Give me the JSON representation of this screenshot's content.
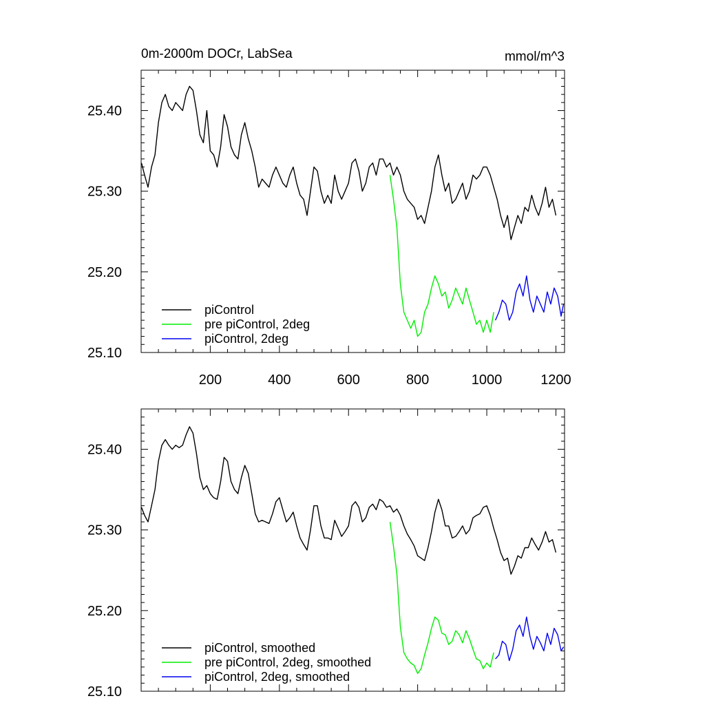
{
  "colors": {
    "piControl": "#000000",
    "pre_piControl_2deg": "#00ee00",
    "piControl_2deg": "#0000ee"
  },
  "chart_data": [
    {
      "type": "line",
      "title": "0m-2000m DOCr, LabSea",
      "units": "mmol/m^3",
      "xlim": [
        0,
        1225
      ],
      "ylim": [
        25.1,
        25.45
      ],
      "yticks": [
        "25.10",
        "25.20",
        "25.30",
        "25.40"
      ],
      "xticks": [
        "200",
        "400",
        "600",
        "800",
        "1000",
        "1200"
      ],
      "grid": false,
      "legend_position": "bottom-left",
      "series": [
        {
          "name": "piControl",
          "color": "#000000",
          "x": [
            1,
            10,
            20,
            30,
            40,
            50,
            60,
            70,
            80,
            90,
            100,
            110,
            120,
            130,
            140,
            150,
            160,
            170,
            180,
            190,
            200,
            210,
            220,
            230,
            240,
            250,
            260,
            270,
            280,
            290,
            300,
            310,
            320,
            330,
            340,
            350,
            360,
            370,
            380,
            390,
            400,
            410,
            420,
            430,
            440,
            450,
            460,
            470,
            480,
            490,
            500,
            510,
            520,
            530,
            540,
            550,
            560,
            570,
            580,
            590,
            600,
            610,
            620,
            630,
            640,
            650,
            660,
            670,
            680,
            690,
            700,
            710,
            720,
            730,
            740,
            750,
            760,
            770,
            780,
            790,
            800,
            810,
            820,
            830,
            840,
            850,
            860,
            870,
            880,
            890,
            900,
            910,
            920,
            930,
            940,
            950,
            960,
            970,
            980,
            990,
            1000,
            1010,
            1020,
            1030,
            1040,
            1050,
            1060,
            1070,
            1080,
            1090,
            1100,
            1110,
            1120,
            1130,
            1140,
            1150,
            1160,
            1170,
            1180,
            1190,
            1200
          ],
          "y": [
            25.335,
            25.32,
            25.305,
            25.33,
            25.345,
            25.385,
            25.41,
            25.42,
            25.405,
            25.4,
            25.41,
            25.405,
            25.4,
            25.42,
            25.43,
            25.425,
            25.4,
            25.37,
            25.36,
            25.4,
            25.35,
            25.345,
            25.33,
            25.355,
            25.395,
            25.38,
            25.355,
            25.345,
            25.34,
            25.37,
            25.385,
            25.365,
            25.35,
            25.33,
            25.305,
            25.315,
            25.31,
            25.305,
            25.32,
            25.33,
            25.32,
            25.31,
            25.305,
            25.32,
            25.33,
            25.31,
            25.295,
            25.29,
            25.27,
            25.3,
            25.33,
            25.325,
            25.3,
            25.285,
            25.295,
            25.285,
            25.32,
            25.3,
            25.29,
            25.3,
            25.31,
            25.335,
            25.34,
            25.325,
            25.3,
            25.31,
            25.33,
            25.335,
            25.32,
            25.34,
            25.34,
            25.33,
            25.335,
            25.32,
            25.33,
            25.32,
            25.3,
            25.29,
            25.285,
            25.28,
            25.265,
            25.27,
            25.26,
            25.28,
            25.3,
            25.33,
            25.345,
            25.32,
            25.3,
            25.31,
            25.285,
            25.29,
            25.3,
            25.31,
            25.29,
            25.3,
            25.32,
            25.315,
            25.32,
            25.33,
            25.33,
            25.32,
            25.305,
            25.29,
            25.27,
            25.255,
            25.27,
            25.24,
            25.255,
            25.27,
            25.26,
            25.28,
            25.275,
            25.295,
            25.28,
            25.27,
            25.285,
            25.305,
            25.28,
            25.29,
            25.27
          ]
        },
        {
          "name": "pre piControl, 2deg",
          "color": "#00ee00",
          "x": [
            720,
            730,
            740,
            750,
            760,
            770,
            780,
            790,
            800,
            810,
            820,
            830,
            840,
            850,
            860,
            870,
            880,
            890,
            900,
            910,
            920,
            930,
            940,
            950,
            960,
            970,
            980,
            990,
            1000,
            1010,
            1020
          ],
          "y": [
            25.32,
            25.29,
            25.255,
            25.185,
            25.15,
            25.14,
            25.13,
            25.14,
            25.12,
            25.125,
            25.15,
            25.16,
            25.18,
            25.195,
            25.185,
            25.17,
            25.175,
            25.155,
            25.165,
            25.18,
            25.17,
            25.16,
            25.18,
            25.165,
            25.15,
            25.135,
            25.14,
            25.125,
            25.14,
            25.125,
            25.15
          ]
        },
        {
          "name": "piControl, 2deg",
          "color": "#0000ee",
          "x": [
            1025,
            1035,
            1045,
            1055,
            1065,
            1075,
            1085,
            1095,
            1105,
            1115,
            1125,
            1135,
            1145,
            1155,
            1165,
            1175,
            1185,
            1195,
            1205,
            1215,
            1222
          ],
          "y": [
            25.14,
            25.15,
            25.165,
            25.16,
            25.14,
            25.15,
            25.175,
            25.185,
            25.17,
            25.195,
            25.165,
            25.15,
            25.17,
            25.16,
            25.15,
            25.175,
            25.16,
            25.18,
            25.17,
            25.145,
            25.16
          ]
        }
      ]
    },
    {
      "type": "line",
      "xlim": [
        0,
        1225
      ],
      "ylim": [
        25.1,
        25.45
      ],
      "yticks": [
        "25.10",
        "25.20",
        "25.30",
        "25.40"
      ],
      "grid": false,
      "legend_position": "bottom-left",
      "series": [
        {
          "name": "piControl, smoothed",
          "color": "#000000",
          "x": [
            1,
            10,
            20,
            30,
            40,
            50,
            60,
            70,
            80,
            90,
            100,
            110,
            120,
            130,
            140,
            150,
            160,
            170,
            180,
            190,
            200,
            210,
            220,
            230,
            240,
            250,
            260,
            270,
            280,
            290,
            300,
            310,
            320,
            330,
            340,
            350,
            360,
            370,
            380,
            390,
            400,
            410,
            420,
            430,
            440,
            450,
            460,
            470,
            480,
            490,
            500,
            510,
            520,
            530,
            540,
            550,
            560,
            570,
            580,
            590,
            600,
            610,
            620,
            630,
            640,
            650,
            660,
            670,
            680,
            690,
            700,
            710,
            720,
            730,
            740,
            750,
            760,
            770,
            780,
            790,
            800,
            810,
            820,
            830,
            840,
            850,
            860,
            870,
            880,
            890,
            900,
            910,
            920,
            930,
            940,
            950,
            960,
            970,
            980,
            990,
            1000,
            1010,
            1020,
            1030,
            1040,
            1050,
            1060,
            1070,
            1080,
            1090,
            1100,
            1110,
            1120,
            1130,
            1140,
            1150,
            1160,
            1170,
            1180,
            1190,
            1200
          ],
          "y": [
            25.328,
            25.318,
            25.31,
            25.33,
            25.35,
            25.385,
            25.405,
            25.412,
            25.405,
            25.4,
            25.405,
            25.402,
            25.405,
            25.418,
            25.428,
            25.42,
            25.395,
            25.365,
            25.35,
            25.355,
            25.345,
            25.34,
            25.338,
            25.36,
            25.39,
            25.385,
            25.36,
            25.35,
            25.345,
            25.365,
            25.38,
            25.37,
            25.345,
            25.32,
            25.31,
            25.312,
            25.31,
            25.308,
            25.32,
            25.335,
            25.34,
            25.325,
            25.31,
            25.315,
            25.322,
            25.305,
            25.29,
            25.282,
            25.275,
            25.3,
            25.33,
            25.33,
            25.305,
            25.29,
            25.29,
            25.288,
            25.312,
            25.302,
            25.292,
            25.298,
            25.305,
            25.33,
            25.335,
            25.328,
            25.31,
            25.315,
            25.328,
            25.332,
            25.325,
            25.338,
            25.335,
            25.328,
            25.33,
            25.322,
            25.326,
            25.318,
            25.305,
            25.295,
            25.288,
            25.28,
            25.268,
            25.265,
            25.262,
            25.278,
            25.298,
            25.322,
            25.338,
            25.325,
            25.305,
            25.305,
            25.29,
            25.292,
            25.298,
            25.305,
            25.295,
            25.3,
            25.315,
            25.318,
            25.32,
            25.328,
            25.33,
            25.318,
            25.302,
            25.288,
            25.272,
            25.262,
            25.265,
            25.245,
            25.255,
            25.268,
            25.265,
            25.278,
            25.278,
            25.29,
            25.282,
            25.275,
            25.285,
            25.298,
            25.285,
            25.288,
            25.272
          ]
        },
        {
          "name": "pre piControl, 2deg, smoothed",
          "color": "#00ee00",
          "x": [
            720,
            730,
            740,
            750,
            760,
            770,
            780,
            790,
            800,
            810,
            820,
            830,
            840,
            850,
            860,
            870,
            880,
            890,
            900,
            910,
            920,
            930,
            940,
            950,
            960,
            970,
            980,
            990,
            1000,
            1010,
            1020
          ],
          "y": [
            25.31,
            25.28,
            25.245,
            25.18,
            25.148,
            25.14,
            25.135,
            25.132,
            25.122,
            25.128,
            25.145,
            25.16,
            25.178,
            25.192,
            25.188,
            25.172,
            25.17,
            25.158,
            25.162,
            25.175,
            25.17,
            25.16,
            25.175,
            25.165,
            25.152,
            25.14,
            25.138,
            25.128,
            25.135,
            25.13,
            25.148
          ]
        },
        {
          "name": "piControl, 2deg, smoothed",
          "color": "#0000ee",
          "x": [
            1025,
            1035,
            1045,
            1055,
            1065,
            1075,
            1085,
            1095,
            1105,
            1115,
            1125,
            1135,
            1145,
            1155,
            1165,
            1175,
            1185,
            1195,
            1205,
            1215,
            1222
          ],
          "y": [
            25.14,
            25.145,
            25.162,
            25.158,
            25.138,
            25.152,
            25.175,
            25.182,
            25.168,
            25.192,
            25.168,
            25.152,
            25.168,
            25.16,
            25.15,
            25.172,
            25.158,
            25.178,
            25.17,
            25.15,
            25.155
          ]
        }
      ]
    }
  ]
}
